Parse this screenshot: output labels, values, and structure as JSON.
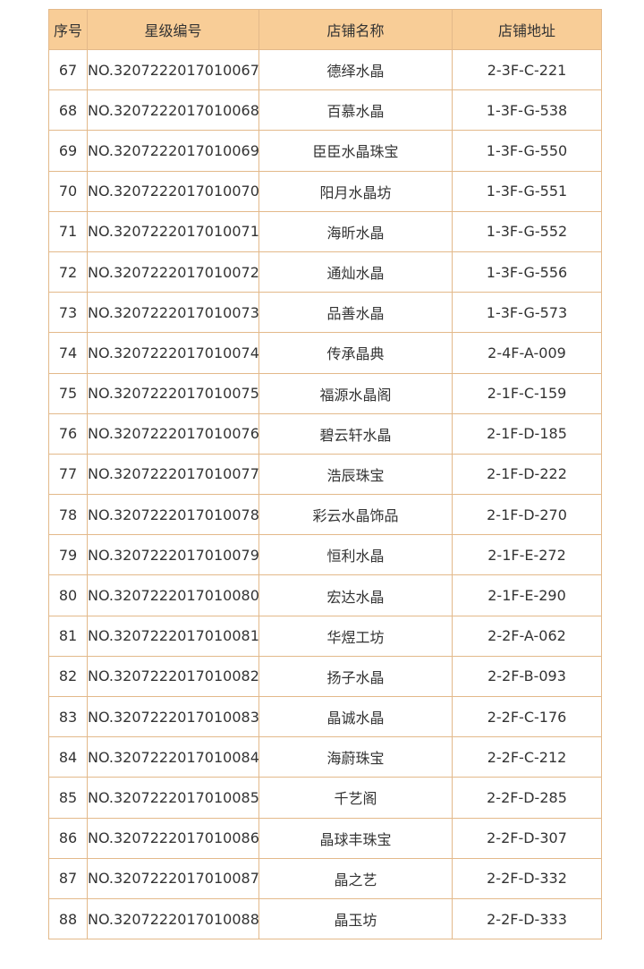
{
  "table": {
    "header": [
      "序号",
      "星级编号",
      "店铺名称",
      "店铺地址"
    ],
    "rows": [
      [
        "67",
        "NO.3207222017010067",
        "德绎水晶",
        "2-3F-C-221"
      ],
      [
        "68",
        "NO.3207222017010068",
        "百慕水晶",
        "1-3F-G-538"
      ],
      [
        "69",
        "NO.3207222017010069",
        "臣臣水晶珠宝",
        "1-3F-G-550"
      ],
      [
        "70",
        "NO.3207222017010070",
        "阳月水晶坊",
        "1-3F-G-551"
      ],
      [
        "71",
        "NO.3207222017010071",
        "海昕水晶",
        "1-3F-G-552"
      ],
      [
        "72",
        "NO.3207222017010072",
        "通灿水晶",
        "1-3F-G-556"
      ],
      [
        "73",
        "NO.3207222017010073",
        "品善水晶",
        "1-3F-G-573"
      ],
      [
        "74",
        "NO.3207222017010074",
        "传承晶典",
        "2-4F-A-009"
      ],
      [
        "75",
        "NO.3207222017010075",
        "福源水晶阁",
        "2-1F-C-159"
      ],
      [
        "76",
        "NO.3207222017010076",
        "碧云轩水晶",
        "2-1F-D-185"
      ],
      [
        "77",
        "NO.3207222017010077",
        "浩辰珠宝",
        "2-1F-D-222"
      ],
      [
        "78",
        "NO.3207222017010078",
        "彩云水晶饰品",
        "2-1F-D-270"
      ],
      [
        "79",
        "NO.3207222017010079",
        "恒利水晶",
        "2-1F-E-272"
      ],
      [
        "80",
        "NO.3207222017010080",
        "宏达水晶",
        "2-1F-E-290"
      ],
      [
        "81",
        "NO.3207222017010081",
        "华煜工坊",
        "2-2F-A-062"
      ],
      [
        "82",
        "NO.3207222017010082",
        "扬子水晶",
        "2-2F-B-093"
      ],
      [
        "83",
        "NO.3207222017010083",
        "晶诚水晶",
        "2-2F-C-176"
      ],
      [
        "84",
        "NO.3207222017010084",
        "海蔚珠宝",
        "2-2F-C-212"
      ],
      [
        "85",
        "NO.3207222017010085",
        "千艺阁",
        "2-2F-D-285"
      ],
      [
        "86",
        "NO.3207222017010086",
        "晶球丰珠宝",
        "2-2F-D-307"
      ],
      [
        "87",
        "NO.3207222017010087",
        "晶之艺",
        "2-2F-D-332"
      ],
      [
        "88",
        "NO.3207222017010088",
        "晶玉坊",
        "2-2F-D-333"
      ]
    ]
  }
}
